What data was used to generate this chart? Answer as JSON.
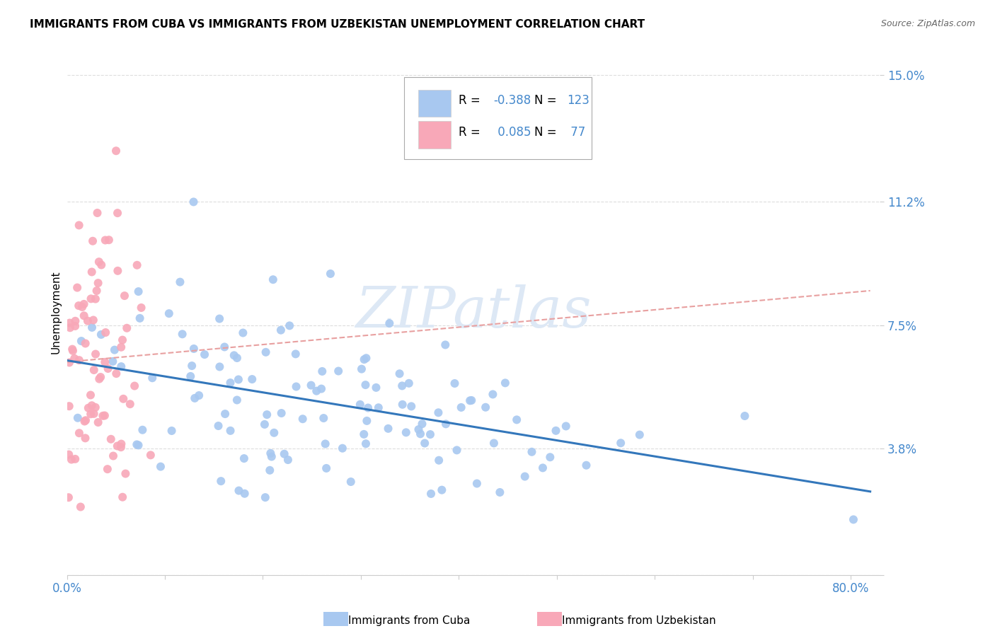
{
  "title": "IMMIGRANTS FROM CUBA VS IMMIGRANTS FROM UZBEKISTAN UNEMPLOYMENT CORRELATION CHART",
  "source": "Source: ZipAtlas.com",
  "ylabel": "Unemployment",
  "cuba_R": -0.388,
  "cuba_N": 123,
  "uzbek_R": 0.085,
  "uzbek_N": 77,
  "cuba_color": "#a8c8f0",
  "uzbek_color": "#f8a8b8",
  "cuba_line_color": "#3377bb",
  "uzbek_line_color": "#e8a0a0",
  "watermark_color": "#dde8f5",
  "ytick_vals": [
    0.0,
    0.038,
    0.075,
    0.112,
    0.15
  ],
  "ytick_labels": [
    "",
    "3.8%",
    "7.5%",
    "11.2%",
    "15.0%"
  ],
  "xtick_vals": [
    0.0,
    0.1,
    0.2,
    0.3,
    0.4,
    0.5,
    0.6,
    0.7,
    0.8
  ],
  "xtick_labels": [
    "0.0%",
    "",
    "",
    "",
    "",
    "",
    "",
    "",
    "80.0%"
  ],
  "xlim": [
    0.0,
    0.83
  ],
  "ylim": [
    0.0,
    0.158
  ],
  "tick_color": "#4488cc",
  "grid_color": "#dddddd",
  "legend_R_color": "#222222",
  "legend_val_color": "#4488cc"
}
